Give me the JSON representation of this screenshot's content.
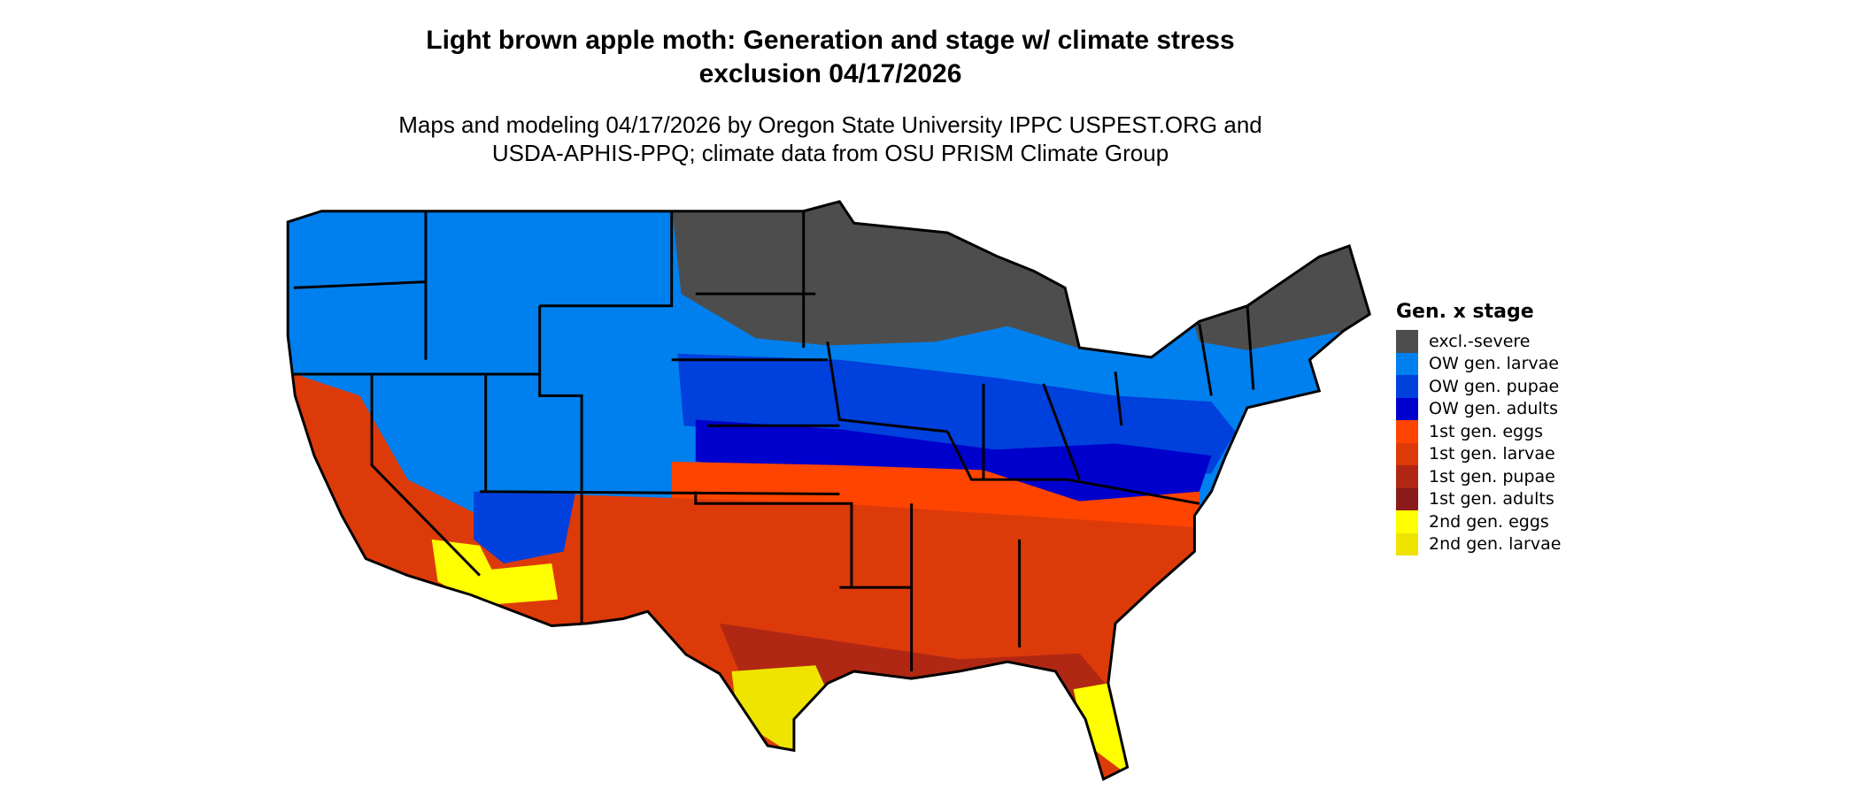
{
  "chart_data": {
    "type": "heatmap",
    "title_line1": "Light brown apple moth: Generation and stage w/ climate stress",
    "title_line2": "exclusion 04/17/2026",
    "subtitle_line1": "Maps and modeling 04/17/2026 by Oregon State University IPPC USPEST.ORG and",
    "subtitle_line2": "USDA-APHIS-PPQ; climate data from OSU PRISM Climate Group",
    "legend": {
      "title": "Gen. x stage",
      "placement": "right",
      "entries": [
        {
          "label": "excl.-severe",
          "color": "#4d4d4d"
        },
        {
          "label": "OW gen. larvae",
          "color": "#0080ee"
        },
        {
          "label": "OW gen. pupae",
          "color": "#0040dd"
        },
        {
          "label": "OW gen. adults",
          "color": "#0000cc"
        },
        {
          "label": "1st gen. eggs",
          "color": "#ff4400"
        },
        {
          "label": "1st gen. larvae",
          "color": "#dd3a0a"
        },
        {
          "label": "1st gen. pupae",
          "color": "#b02814"
        },
        {
          "label": "1st gen. adults",
          "color": "#8b1a1a"
        },
        {
          "label": "2nd gen. eggs",
          "color": "#ffff00"
        },
        {
          "label": "2nd gen. larvae",
          "color": "#eee400"
        }
      ]
    }
  }
}
